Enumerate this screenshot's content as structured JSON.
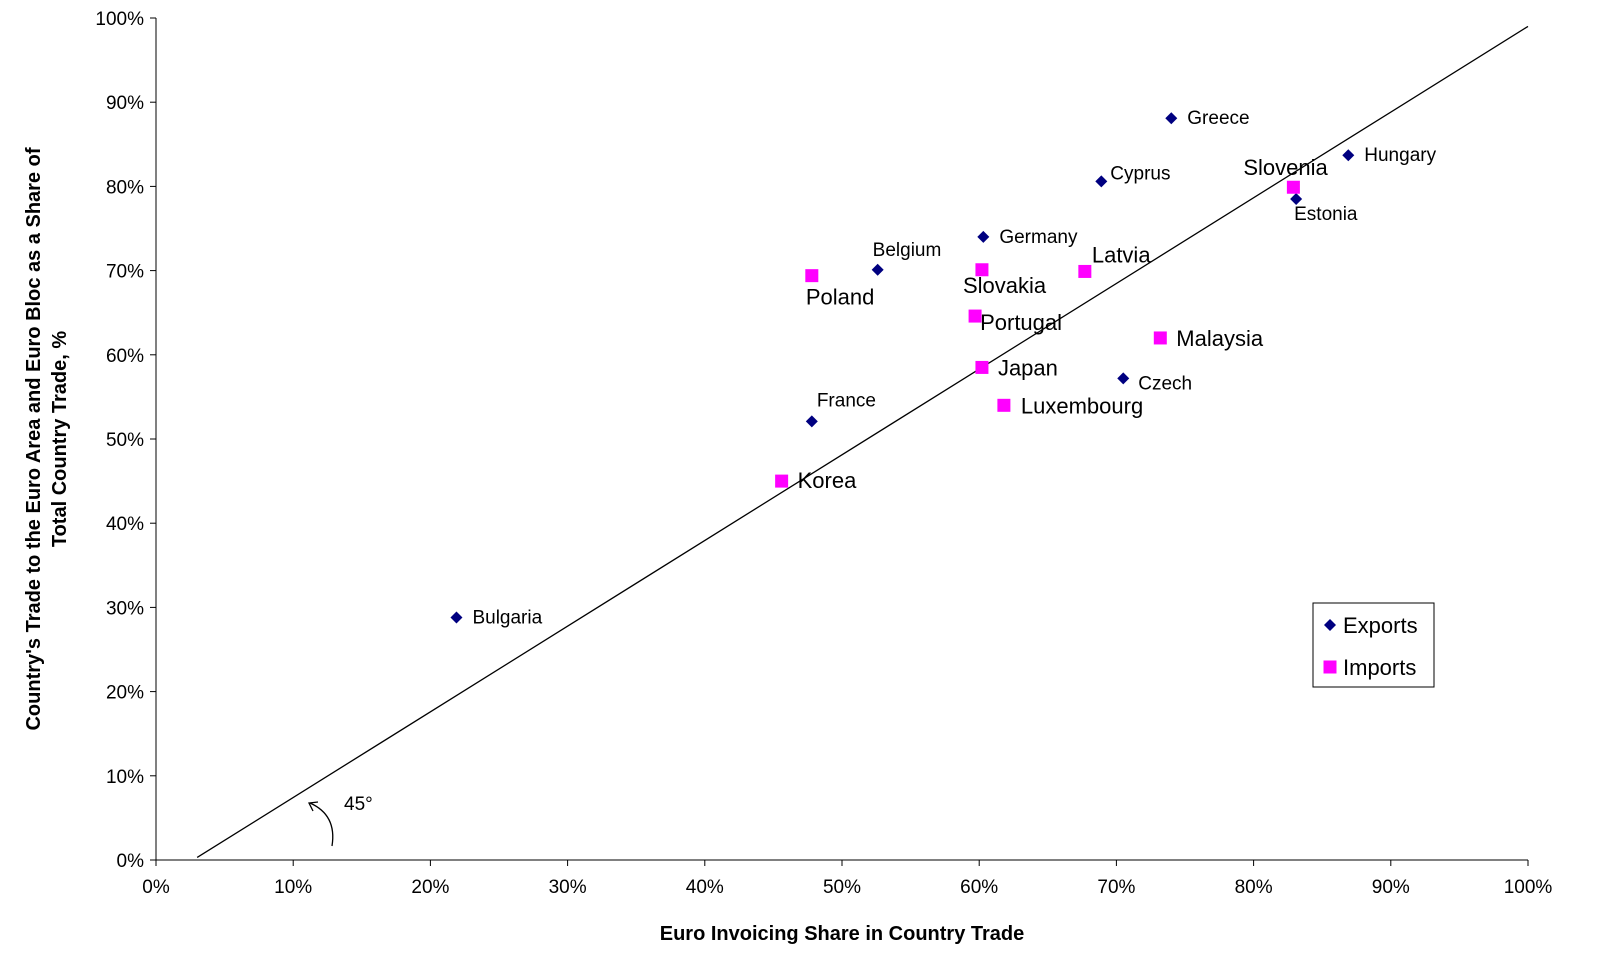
{
  "chart_data": {
    "type": "scatter",
    "xlabel": "Euro Invoicing Share in Country Trade",
    "ylabel_line1": "Country's Trade to the Euro Area and Euro Bloc as a Share of",
    "ylabel_line2": "Total Country Trade, %",
    "xlim": [
      0,
      1
    ],
    "ylim": [
      0,
      1
    ],
    "x_ticks": [
      "0%",
      "10%",
      "20%",
      "30%",
      "40%",
      "50%",
      "60%",
      "70%",
      "80%",
      "90%",
      "100%"
    ],
    "y_ticks": [
      "0%",
      "10%",
      "20%",
      "30%",
      "40%",
      "50%",
      "60%",
      "70%",
      "80%",
      "90%",
      "100%"
    ],
    "grid": false,
    "legend_position": "bottom-right",
    "reference_line": {
      "label": "45°",
      "from": [
        0.03,
        0.003
      ],
      "to": [
        1.0,
        0.99
      ]
    },
    "series": [
      {
        "name": "Exports",
        "marker": "diamond",
        "color": "#000080",
        "points": [
          {
            "label": "Greece",
            "x": 0.74,
            "y": 0.881
          },
          {
            "label": "Hungary",
            "x": 0.869,
            "y": 0.837
          },
          {
            "label": "Cyprus",
            "x": 0.689,
            "y": 0.806
          },
          {
            "label": "Estonia",
            "x": 0.831,
            "y": 0.785
          },
          {
            "label": "Germany",
            "x": 0.603,
            "y": 0.74
          },
          {
            "label": "Belgium",
            "x": 0.526,
            "y": 0.701
          },
          {
            "label": "Czech",
            "x": 0.705,
            "y": 0.572
          },
          {
            "label": "France",
            "x": 0.478,
            "y": 0.521
          },
          {
            "label": "Bulgaria",
            "x": 0.219,
            "y": 0.288
          }
        ]
      },
      {
        "name": "Imports",
        "marker": "square",
        "color": "#FF00FF",
        "points": [
          {
            "label": "Slovenia",
            "x": 0.829,
            "y": 0.799
          },
          {
            "label": "Slovakia",
            "x": 0.602,
            "y": 0.701
          },
          {
            "label": "Latvia",
            "x": 0.677,
            "y": 0.699
          },
          {
            "label": "Poland",
            "x": 0.478,
            "y": 0.694
          },
          {
            "label": "Portugal",
            "x": 0.597,
            "y": 0.646
          },
          {
            "label": "Malaysia",
            "x": 0.732,
            "y": 0.62
          },
          {
            "label": "Japan",
            "x": 0.602,
            "y": 0.585
          },
          {
            "label": "Luxembourg",
            "x": 0.618,
            "y": 0.54
          },
          {
            "label": "Korea",
            "x": 0.456,
            "y": 0.45
          }
        ]
      }
    ]
  }
}
